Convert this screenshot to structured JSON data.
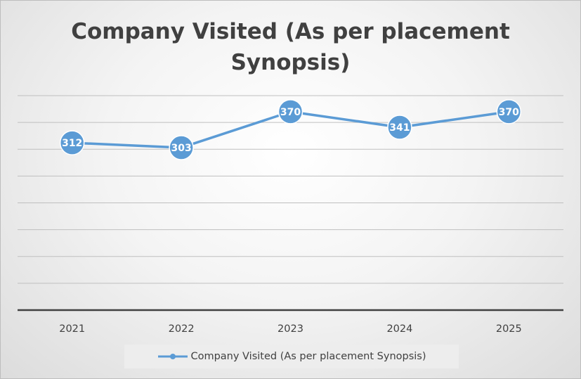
{
  "chart_data": {
    "type": "line",
    "title": "Company Visited (As per placement Synopsis)",
    "categories": [
      "2021",
      "2022",
      "2023",
      "2024",
      "2025"
    ],
    "series": [
      {
        "name": "Company Visited (As per placement Synopsis)",
        "values": [
          312,
          303,
          370,
          341,
          370
        ]
      }
    ],
    "data_labels": [
      "312",
      "303",
      "370",
      "341",
      "370"
    ],
    "ylim": [
      0,
      400
    ],
    "y_gridlines": 8,
    "y_tick_labels_shown": false,
    "grid": true,
    "legend": "bottom",
    "colors": {
      "series": "#5b9bd5",
      "axis": "#404040",
      "grid": "#bfbfbf",
      "label_text": "#ffffff"
    }
  }
}
